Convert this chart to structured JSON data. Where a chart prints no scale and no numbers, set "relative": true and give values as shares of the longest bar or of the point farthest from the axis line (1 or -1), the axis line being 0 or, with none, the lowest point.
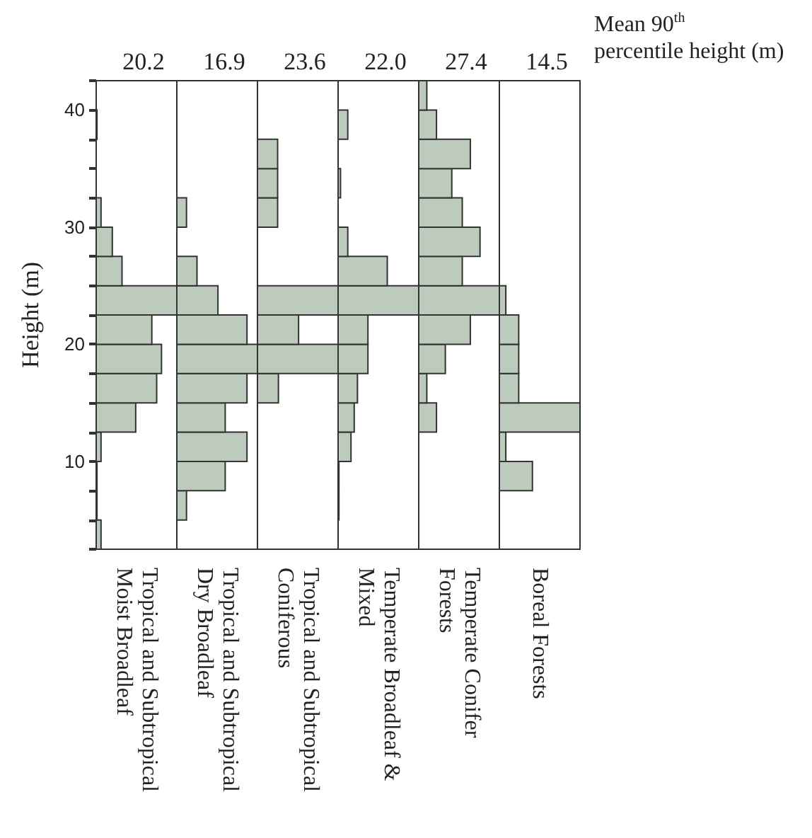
{
  "chart_data": [
    {
      "type": "bar",
      "orientation": "horizontal",
      "relative": true,
      "title": "20.2",
      "annotations": [
        "Tropical and Subtropical\nMoist Broadleaf"
      ],
      "ylabel": "Height (m)",
      "color": "#bccbbb",
      "tick_labels": "y",
      "ylim": [
        2.5,
        42.5
      ],
      "yticks": [
        {
          "value": 2.5,
          "label": null
        },
        {
          "value": 5,
          "label": null
        },
        {
          "value": 7.5,
          "label": null
        },
        10,
        {
          "value": 12.5,
          "label": null
        },
        {
          "value": 15,
          "label": null
        },
        {
          "value": 17.5,
          "label": null
        },
        20,
        {
          "value": 22.5,
          "label": null
        },
        {
          "value": 25,
          "label": null
        },
        {
          "value": 27.5,
          "label": null
        },
        30,
        {
          "value": 32.5,
          "label": null
        },
        {
          "value": 35,
          "label": null
        },
        {
          "value": 37.5,
          "label": null
        },
        40,
        {
          "value": 42.5,
          "label": null
        }
      ],
      "x": [
        3.75,
        6.25,
        8.75,
        11.25,
        13.75,
        16.25,
        18.75,
        21.25,
        23.75,
        26.25,
        28.75,
        31.25,
        33.75,
        36.25,
        38.75,
        41.25
      ],
      "values": [
        0.06,
        0.01,
        0.01,
        0.06,
        0.49,
        0.75,
        0.81,
        0.69,
        1,
        0.32,
        0.2,
        0.06,
        0,
        0,
        0.01,
        0
      ]
    },
    {
      "type": "bar",
      "orientation": "horizontal",
      "relative": true,
      "title": "16.9",
      "annotations": [
        "Tropical and Subtropical\nDry Broadleaf"
      ],
      "color": "#bccbbb",
      "tick_labels": false,
      "ylim": [
        2.5,
        42.5
      ],
      "x": [
        3.75,
        6.25,
        8.75,
        11.25,
        13.75,
        16.25,
        18.75,
        21.25,
        23.75,
        26.25,
        28.75,
        31.25,
        33.75,
        36.25,
        38.75,
        41.25
      ],
      "values": [
        0,
        0.12,
        0.6,
        0.87,
        0.6,
        0.87,
        1,
        0.87,
        0.51,
        0.25,
        0,
        0.12,
        0,
        0,
        0,
        0
      ]
    },
    {
      "type": "bar",
      "orientation": "horizontal",
      "relative": true,
      "title": "23.6",
      "annotations": [
        "Tropical and Subtropical\nConiferous"
      ],
      "color": "#bccbbb",
      "tick_labels": false,
      "ylim": [
        2.5,
        42.5
      ],
      "x": [
        3.75,
        6.25,
        8.75,
        11.25,
        13.75,
        16.25,
        18.75,
        21.25,
        23.75,
        26.25,
        28.75,
        31.25,
        33.75,
        36.25,
        38.75,
        41.25
      ],
      "values": [
        0,
        0,
        0,
        0,
        0,
        0.26,
        1,
        0.51,
        1,
        0,
        0,
        0.25,
        0.25,
        0.25,
        0,
        0
      ]
    },
    {
      "type": "bar",
      "orientation": "horizontal",
      "relative": true,
      "title": "22.0",
      "annotations": [
        "Temperate Broadleaf &\nMixed"
      ],
      "color": "#bccbbb",
      "tick_labels": false,
      "ylim": [
        2.5,
        42.5
      ],
      "x": [
        3.75,
        6.25,
        8.75,
        11.25,
        13.75,
        16.25,
        18.75,
        21.25,
        23.75,
        26.25,
        28.75,
        31.25,
        33.75,
        36.25,
        38.75,
        41.25
      ],
      "values": [
        0,
        0.01,
        0.01,
        0.16,
        0.2,
        0.24,
        0.37,
        0.37,
        1,
        0.61,
        0.12,
        0,
        0.03,
        0,
        0.12,
        0
      ]
    },
    {
      "type": "bar",
      "orientation": "horizontal",
      "relative": true,
      "title": "27.4",
      "annotations": [
        "Temperate Conifer\nForests"
      ],
      "color": "#bccbbb",
      "tick_labels": false,
      "ylim": [
        2.5,
        42.5
      ],
      "x": [
        3.75,
        6.25,
        8.75,
        11.25,
        13.75,
        16.25,
        18.75,
        21.25,
        23.75,
        26.25,
        28.75,
        31.25,
        33.75,
        36.25,
        38.75,
        41.25
      ],
      "values": [
        0,
        0,
        0,
        0,
        0.22,
        0.1,
        0.33,
        0.64,
        1,
        0.54,
        0.76,
        0.54,
        0.41,
        0.64,
        0.22,
        0.1
      ]
    },
    {
      "type": "bar",
      "orientation": "horizontal",
      "relative": true,
      "title": "14.5",
      "annotations": [
        "Boreal Forests",
        "Mean 90$^{th}$\npercentile height (m)"
      ],
      "color": "#bccbbb",
      "tick_labels": false,
      "ylim": [
        2.5,
        42.5
      ],
      "x": [
        3.75,
        6.25,
        8.75,
        11.25,
        13.75,
        16.25,
        18.75,
        21.25,
        23.75,
        26.25,
        28.75,
        31.25,
        33.75,
        36.25,
        38.75,
        41.25
      ],
      "values": [
        0,
        0,
        0.41,
        0.08,
        1,
        0.24,
        0.24,
        0.24,
        0.08,
        0,
        0,
        0,
        0,
        0,
        0,
        0
      ]
    }
  ]
}
